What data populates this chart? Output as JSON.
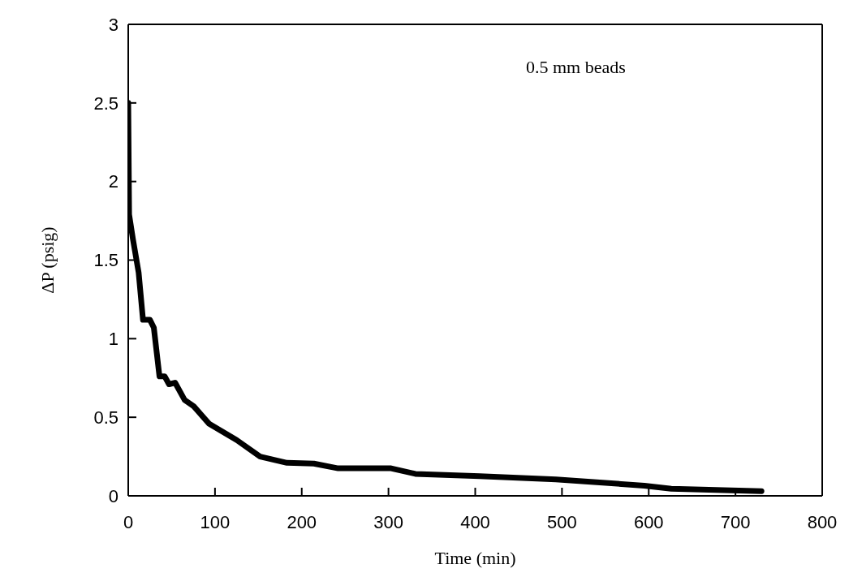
{
  "chart_data": {
    "type": "line",
    "xlabel": "Time (min)",
    "ylabel": "ΔP (psig)",
    "annotations": [
      "0.5 mm beads"
    ],
    "series": [
      {
        "color": "#000000",
        "x": [
          0,
          1,
          5.5,
          12,
          17,
          25,
          29.5,
          36,
          42,
          47,
          54,
          65,
          75.5,
          93,
          125,
          152,
          183,
          214,
          242,
          303,
          331,
          405,
          493,
          595,
          626,
          730
        ],
        "values": [
          2.5,
          1.79,
          1.63,
          1.42,
          1.12,
          1.12,
          1.07,
          0.76,
          0.76,
          0.71,
          0.72,
          0.61,
          0.57,
          0.46,
          0.355,
          0.25,
          0.21,
          0.205,
          0.175,
          0.175,
          0.14,
          0.125,
          0.105,
          0.065,
          0.045,
          0.03
        ]
      }
    ],
    "xlim": [
      0,
      800
    ],
    "xticks": [
      0,
      100,
      200,
      300,
      400,
      500,
      600,
      700,
      800
    ],
    "ylim": [
      0,
      3
    ],
    "yticks": [
      0,
      0.5,
      1,
      1.5,
      2,
      2.5,
      3
    ],
    "marker": "none",
    "line_style": "solid"
  }
}
